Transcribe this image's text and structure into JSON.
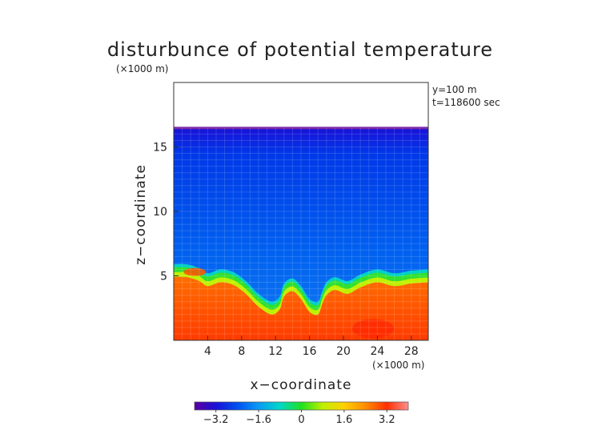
{
  "chart_data": {
    "type": "heatmap",
    "title": "disturbunce of potential temperature",
    "y_unit": "(×1000 m)",
    "x_unit": "(×1000 m)",
    "xlabel": "x−coordinate",
    "ylabel": "z−coordinate",
    "annotations": [
      "y=100 m",
      "t=118600 sec"
    ],
    "xlim": [
      0,
      30
    ],
    "ylim": [
      0,
      20
    ],
    "x_ticks": [
      4,
      8,
      12,
      16,
      20,
      24,
      28
    ],
    "x_tick_labels": [
      "4",
      "8",
      "12",
      "16",
      "20",
      "24",
      "28"
    ],
    "y_ticks": [
      5,
      10,
      15
    ],
    "y_tick_labels": [
      "5",
      "10",
      "15"
    ],
    "domain_top_z": 16.5,
    "colorbar": {
      "range": [
        -4,
        4
      ],
      "ticks": [
        -3.2,
        -1.6,
        0,
        1.6,
        3.2
      ],
      "tick_labels": [
        "−3.2",
        "−1.6",
        "0",
        "1.6",
        "3.2"
      ],
      "colors": [
        "#5a00a0",
        "#1a10d8",
        "#0050f0",
        "#0a9af5",
        "#00d8c8",
        "#20e020",
        "#c0f000",
        "#ffd000",
        "#ff8c00",
        "#ff3000",
        "#ff9090"
      ]
    },
    "field": {
      "upper_value": -2.4,
      "lower_value": 2.6,
      "interface_z": [
        [
          0,
          5.9
        ],
        [
          1.5,
          5.9
        ],
        [
          3,
          5.6
        ],
        [
          4,
          5.2
        ],
        [
          5.5,
          5.5
        ],
        [
          7,
          5.3
        ],
        [
          8.5,
          4.6
        ],
        [
          10,
          3.6
        ],
        [
          11.5,
          3.0
        ],
        [
          12.5,
          3.4
        ],
        [
          13,
          4.4
        ],
        [
          14,
          4.8
        ],
        [
          15,
          4.2
        ],
        [
          16,
          3.2
        ],
        [
          17,
          3.0
        ],
        [
          17.5,
          3.8
        ],
        [
          18,
          4.5
        ],
        [
          19,
          4.9
        ],
        [
          20.5,
          4.6
        ],
        [
          22,
          5.1
        ],
        [
          24,
          5.5
        ],
        [
          26,
          5.2
        ],
        [
          28,
          5.4
        ],
        [
          30,
          5.5
        ]
      ]
    }
  }
}
